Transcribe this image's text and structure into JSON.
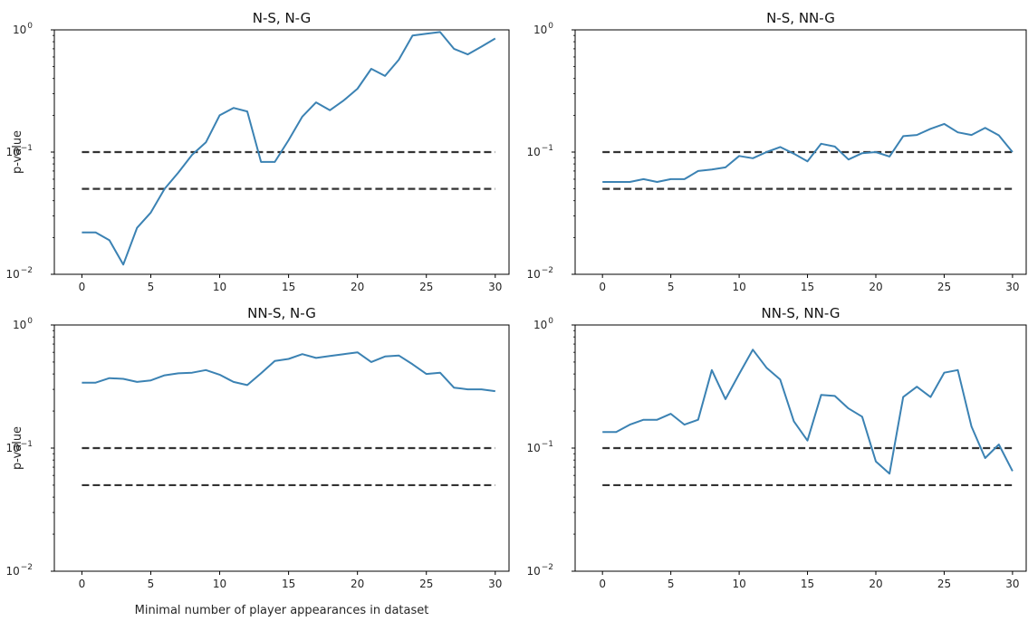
{
  "chart_data": [
    {
      "type": "line",
      "title": "N-S, N-G",
      "xlabel": "",
      "ylabel": "p-value",
      "yscale": "log",
      "xlim": [
        -2,
        31
      ],
      "ylim": [
        0.01,
        1
      ],
      "xticks": [
        "0",
        "5",
        "10",
        "15",
        "20",
        "25",
        "30"
      ],
      "yticks": [
        "10^-2",
        "10^-1",
        "10^0"
      ],
      "reference_lines": [
        0.1,
        0.05
      ],
      "series": [
        {
          "color": "#3b82b3",
          "x": [
            0,
            1,
            2,
            3,
            4,
            5,
            6,
            7,
            8,
            9,
            10,
            11,
            12,
            13,
            14,
            15,
            16,
            17,
            18,
            19,
            20,
            21,
            22,
            23,
            24,
            25,
            26,
            27,
            28,
            29,
            30
          ],
          "y": [
            0.022,
            0.022,
            0.019,
            0.012,
            0.024,
            0.032,
            0.05,
            0.068,
            0.095,
            0.12,
            0.2,
            0.23,
            0.215,
            0.083,
            0.083,
            0.125,
            0.195,
            0.255,
            0.22,
            0.265,
            0.33,
            0.48,
            0.42,
            0.57,
            0.9,
            0.93,
            0.96,
            0.7,
            0.63,
            0.73,
            0.85
          ]
        }
      ]
    },
    {
      "type": "line",
      "title": "N-S, NN-G",
      "xlabel": "",
      "ylabel": "",
      "yscale": "log",
      "xlim": [
        -2,
        31
      ],
      "ylim": [
        0.01,
        1
      ],
      "xticks": [
        "0",
        "5",
        "10",
        "15",
        "20",
        "25",
        "30"
      ],
      "yticks": [
        "10^-2",
        "10^-1",
        "10^0"
      ],
      "reference_lines": [
        0.1,
        0.05
      ],
      "series": [
        {
          "color": "#3b82b3",
          "x": [
            0,
            1,
            2,
            3,
            4,
            5,
            6,
            7,
            8,
            9,
            10,
            11,
            12,
            13,
            14,
            15,
            16,
            17,
            18,
            19,
            20,
            21,
            22,
            23,
            24,
            25,
            26,
            27,
            28,
            29,
            30
          ],
          "y": [
            0.057,
            0.057,
            0.057,
            0.06,
            0.057,
            0.06,
            0.06,
            0.07,
            0.072,
            0.075,
            0.093,
            0.089,
            0.1,
            0.11,
            0.097,
            0.084,
            0.117,
            0.111,
            0.087,
            0.098,
            0.1,
            0.092,
            0.135,
            0.138,
            0.155,
            0.17,
            0.145,
            0.138,
            0.158,
            0.137,
            0.1
          ]
        }
      ]
    },
    {
      "type": "line",
      "title": "NN-S, N-G",
      "xlabel": "Minimal number of player appearances in dataset",
      "ylabel": "p-value",
      "yscale": "log",
      "xlim": [
        -2,
        31
      ],
      "ylim": [
        0.01,
        1
      ],
      "xticks": [
        "0",
        "5",
        "10",
        "15",
        "20",
        "25",
        "30"
      ],
      "yticks": [
        "10^-2",
        "10^-1",
        "10^0"
      ],
      "reference_lines": [
        0.1,
        0.05
      ],
      "series": [
        {
          "color": "#3b82b3",
          "x": [
            0,
            1,
            2,
            3,
            4,
            5,
            6,
            7,
            8,
            9,
            10,
            11,
            12,
            13,
            14,
            15,
            16,
            17,
            18,
            19,
            20,
            21,
            22,
            23,
            24,
            25,
            26,
            27,
            28,
            29,
            30
          ],
          "y": [
            0.34,
            0.34,
            0.37,
            0.365,
            0.345,
            0.355,
            0.39,
            0.405,
            0.41,
            0.43,
            0.395,
            0.345,
            0.325,
            0.405,
            0.51,
            0.53,
            0.58,
            0.54,
            0.56,
            0.58,
            0.6,
            0.5,
            0.555,
            0.565,
            0.48,
            0.4,
            0.41,
            0.31,
            0.3,
            0.3,
            0.29
          ]
        }
      ]
    },
    {
      "type": "line",
      "title": "NN-S, NN-G",
      "xlabel": "",
      "ylabel": "",
      "yscale": "log",
      "xlim": [
        -2,
        31
      ],
      "ylim": [
        0.01,
        1
      ],
      "xticks": [
        "0",
        "5",
        "10",
        "15",
        "20",
        "25",
        "30"
      ],
      "yticks": [
        "10^-2",
        "10^-1",
        "10^0"
      ],
      "reference_lines": [
        0.1,
        0.05
      ],
      "series": [
        {
          "color": "#3b82b3",
          "x": [
            0,
            1,
            2,
            3,
            4,
            5,
            6,
            7,
            8,
            9,
            10,
            11,
            12,
            13,
            14,
            15,
            16,
            17,
            18,
            19,
            20,
            21,
            22,
            23,
            24,
            25,
            26,
            27,
            28,
            29,
            30
          ],
          "y": [
            0.135,
            0.135,
            0.155,
            0.17,
            0.17,
            0.19,
            0.155,
            0.17,
            0.43,
            0.25,
            0.4,
            0.63,
            0.45,
            0.36,
            0.165,
            0.115,
            0.27,
            0.265,
            0.21,
            0.18,
            0.078,
            0.062,
            0.26,
            0.315,
            0.26,
            0.41,
            0.43,
            0.15,
            0.083,
            0.107,
            0.065
          ]
        }
      ]
    }
  ]
}
